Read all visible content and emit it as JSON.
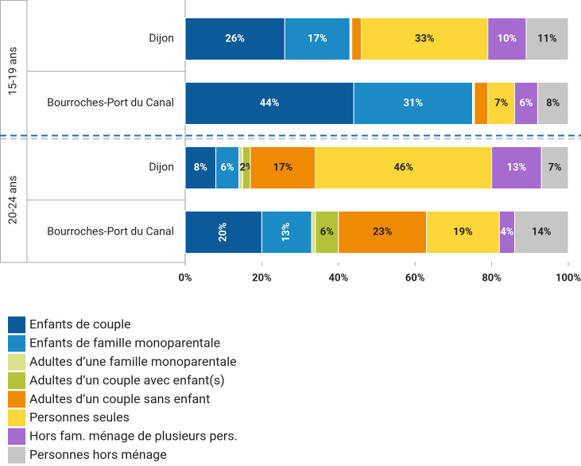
{
  "chart_data": {
    "type": "stacked_barh",
    "categories": [
      "Dijon",
      "Bourroches-Port du Canal",
      "Dijon",
      "Bourroches-Port du Canal"
    ],
    "groups": [
      "15-19 ans",
      "20-24 ans"
    ],
    "xlim": [
      0,
      100
    ],
    "xticks": [
      {
        "value": 0,
        "label": "0%"
      },
      {
        "value": 20,
        "label": "20%"
      },
      {
        "value": 40,
        "label": "40%"
      },
      {
        "value": 60,
        "label": "60%"
      },
      {
        "value": 80,
        "label": "80%"
      },
      {
        "value": 100,
        "label": "100%"
      }
    ],
    "series": [
      {
        "name": "Enfants de couple",
        "color": "#0b5a9a",
        "values": [
          26,
          44,
          8,
          20
        ],
        "value_labels": [
          "26%",
          "44%",
          "8%",
          "20%"
        ]
      },
      {
        "name": "Enfants de famille monoparentale",
        "color": "#1b8ac5",
        "values": [
          17,
          31,
          6,
          13
        ],
        "value_labels": [
          "17%",
          "31%",
          "6%",
          "13%"
        ]
      },
      {
        "name": "Adultes d’une famille monoparentale",
        "color": "#dbe08c",
        "values": [
          0.3,
          0.3,
          1,
          1
        ],
        "value_labels": [
          null,
          null,
          null,
          null
        ]
      },
      {
        "name": "Adultes d’un couple avec enfant(s)",
        "color": "#b3c23a",
        "values": [
          0.2,
          0.2,
          2,
          6
        ],
        "value_labels": [
          null,
          null,
          "2%",
          "6%"
        ]
      },
      {
        "name": "Adultes d’un couple sans enfant",
        "color": "#ef8a05",
        "values": [
          2.5,
          3.5,
          17,
          23
        ],
        "value_labels": [
          null,
          null,
          "17%",
          "23%"
        ]
      },
      {
        "name": "Personnes seules",
        "color": "#fdd63a",
        "values": [
          33,
          7,
          46,
          19
        ],
        "value_labels": [
          "33%",
          "7%",
          "46%",
          "19%"
        ]
      },
      {
        "name": "Hors fam. ménage de plusieurs pers.",
        "color": "#a56bce",
        "values": [
          10,
          6,
          13,
          4
        ],
        "value_labels": [
          "10%",
          "6%",
          "13%",
          "4%"
        ]
      },
      {
        "name": "Personnes hors ménage",
        "color": "#c6c6c6",
        "values": [
          11,
          8,
          7,
          14
        ],
        "value_labels": [
          "11%",
          "8%",
          "7%",
          "14%"
        ]
      }
    ]
  }
}
